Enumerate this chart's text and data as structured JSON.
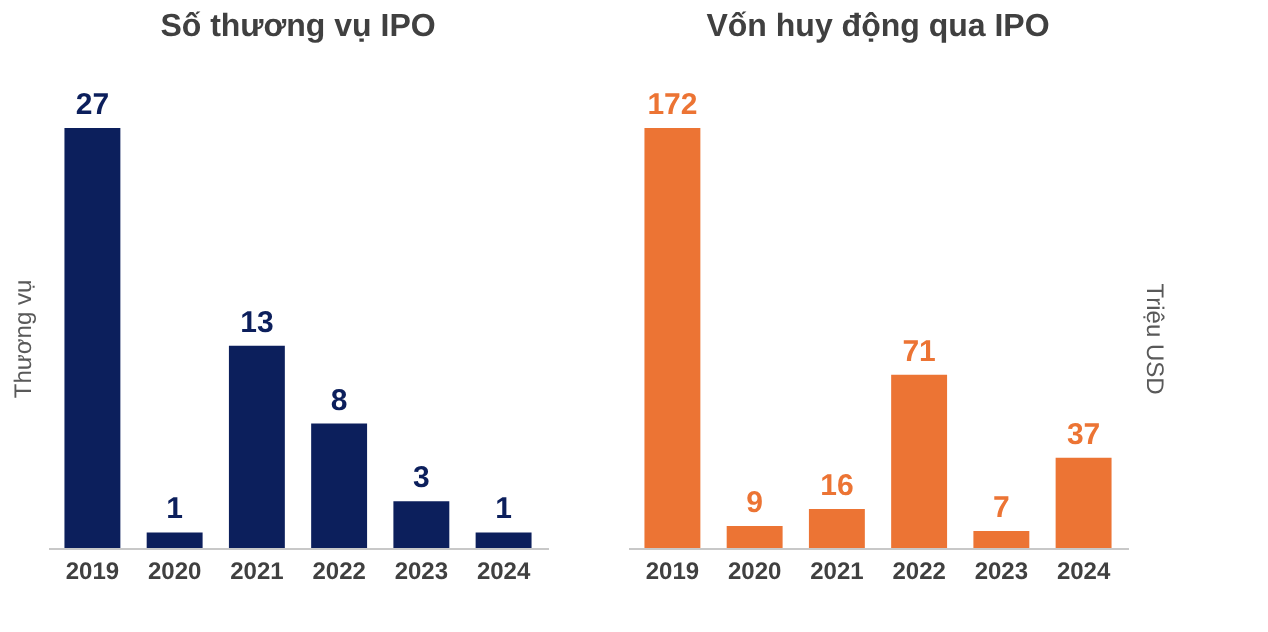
{
  "chart_data": [
    {
      "type": "bar",
      "title": "Số thương vụ IPO",
      "ylabel": "Thương vụ",
      "categories": [
        "2019",
        "2020",
        "2021",
        "2022",
        "2023",
        "2024"
      ],
      "data_labels": true,
      "relative": false,
      "grid": false,
      "series": [
        {
          "color": "#0c1f5c",
          "values": [
            27,
            1,
            13,
            8,
            3,
            1
          ]
        }
      ]
    },
    {
      "type": "bar",
      "title": "Vốn huy động qua IPO",
      "y2label": "Triệu USD",
      "categories": [
        "2019",
        "2020",
        "2021",
        "2022",
        "2023",
        "2024"
      ],
      "data_labels": true,
      "relative": false,
      "grid": false,
      "series": [
        {
          "color": "#ec7434",
          "values": [
            172,
            9,
            16,
            71,
            7,
            37
          ],
          "axis": "y2"
        }
      ]
    }
  ]
}
